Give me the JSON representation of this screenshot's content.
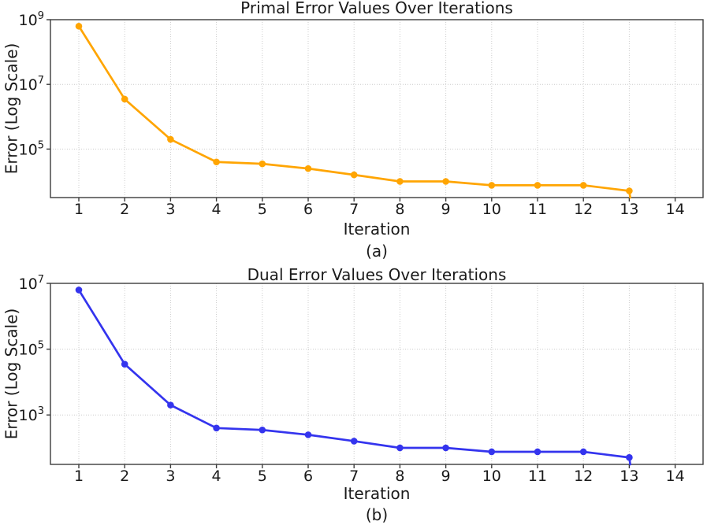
{
  "figure": {
    "background_color": "#ffffff",
    "text_color": "#1a1a1a",
    "grid_color": "#cccccc",
    "spine_color": "#3c3c3c"
  },
  "chart_data": [
    {
      "type": "line",
      "title": "Primal Error Values Over Iterations",
      "xlabel": "Iteration",
      "ylabel": "Error (Log Scale)",
      "sublabel": "(a)",
      "yscale": "log",
      "line_color": "#ffa502",
      "marker": "circle",
      "legend": "none",
      "grid": "on",
      "x_ticks": [
        1,
        2,
        3,
        4,
        5,
        6,
        7,
        8,
        9,
        10,
        11,
        12,
        13,
        14
      ],
      "y_tick_exponents": [
        9,
        7,
        5
      ],
      "y_tick_labels": [
        "10^9",
        "10^7",
        "10^5"
      ],
      "xlim": [
        0.4,
        14.6
      ],
      "ylim_exponents": [
        3.5,
        9
      ],
      "x": [
        1,
        2,
        3,
        4,
        5,
        6,
        7,
        8,
        9,
        10,
        11,
        12,
        13
      ],
      "values": [
        630000000,
        3500000,
        200000,
        40000,
        35000,
        25000,
        16000,
        10000,
        10000,
        7600,
        7600,
        7600,
        5100
      ],
      "clipped_drop_after_last": true
    },
    {
      "type": "line",
      "title": "Dual Error Values Over Iterations",
      "xlabel": "Iteration",
      "ylabel": "Error (Log Scale)",
      "sublabel": "(b)",
      "yscale": "log",
      "line_color": "#3434ee",
      "marker": "circle",
      "legend": "none",
      "grid": "on",
      "x_ticks": [
        1,
        2,
        3,
        4,
        5,
        6,
        7,
        8,
        9,
        10,
        11,
        12,
        13,
        14
      ],
      "y_tick_exponents": [
        7,
        5,
        3
      ],
      "y_tick_labels": [
        "10^7",
        "10^5",
        "10^3"
      ],
      "xlim": [
        0.4,
        14.6
      ],
      "ylim_exponents": [
        1.5,
        7
      ],
      "x": [
        1,
        2,
        3,
        4,
        5,
        6,
        7,
        8,
        9,
        10,
        11,
        12,
        13
      ],
      "values": [
        6300000,
        35000,
        2000,
        400,
        350,
        250,
        160,
        100,
        100,
        76,
        76,
        76,
        51
      ],
      "clipped_drop_after_last": true
    }
  ]
}
